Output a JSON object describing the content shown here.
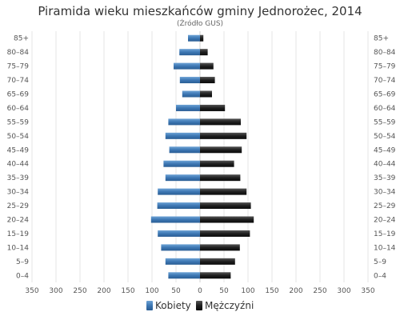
{
  "chart_data": {
    "type": "bar",
    "orientation": "horizontal",
    "layout": "population-pyramid",
    "title": "Piramida wieku mieszkańców gminy Jednorożec, 2014",
    "subtitle": "(Źródło  GUS)",
    "categories": [
      "85+",
      "80–84",
      "75–79",
      "70–74",
      "65–69",
      "60–64",
      "55–59",
      "50–54",
      "45–49",
      "40–44",
      "35–39",
      "30–34",
      "25–29",
      "20–24",
      "15–19",
      "10–14",
      "5–9",
      "0–4"
    ],
    "series": [
      {
        "name": "Kobiety",
        "side": "left",
        "color": "#3d77b3",
        "values": [
          25,
          43,
          55,
          42,
          37,
          50,
          66,
          72,
          64,
          76,
          72,
          88,
          89,
          102,
          88,
          81,
          72,
          66
        ]
      },
      {
        "name": "Mężczyźni",
        "side": "right",
        "color": "#1f1f1f",
        "values": [
          7,
          16,
          28,
          31,
          25,
          52,
          85,
          97,
          87,
          71,
          84,
          97,
          106,
          112,
          104,
          83,
          73,
          64
        ]
      }
    ],
    "xlim": [
      -350,
      350
    ],
    "x_ticks": [
      "350",
      "300",
      "250",
      "200",
      "150",
      "100",
      "50",
      "0",
      "50",
      "100",
      "150",
      "200",
      "250",
      "300",
      "350"
    ],
    "grid": true,
    "legend": "bottom-center"
  }
}
